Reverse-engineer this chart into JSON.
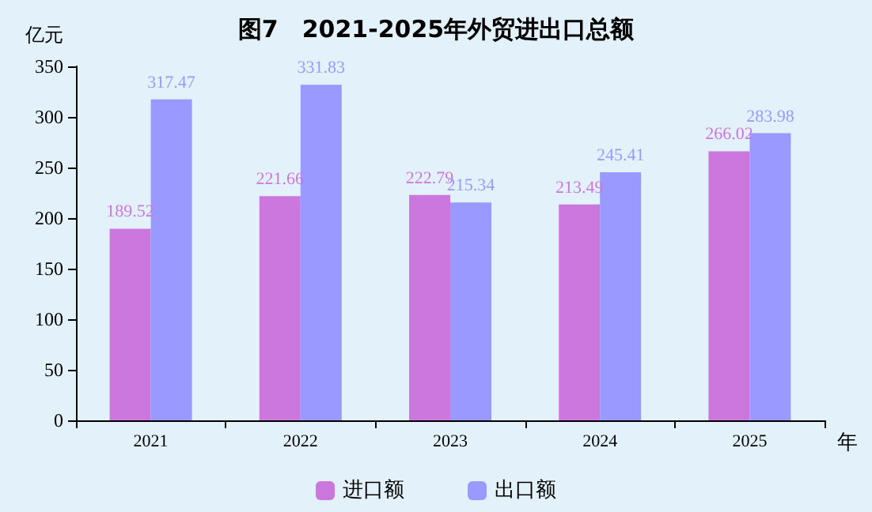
{
  "chart_data": {
    "type": "bar",
    "title": "图7　2021-2025年外贸进出口总额",
    "ylabel": "亿元",
    "xlabel": "年",
    "categories": [
      "2021",
      "2022",
      "2023",
      "2024",
      "2025"
    ],
    "series": [
      {
        "name": "进口额",
        "color": "#cc77dd",
        "values": [
          189.52,
          221.66,
          222.79,
          213.49,
          266.02
        ]
      },
      {
        "name": "出口额",
        "color": "#9999ff",
        "values": [
          317.47,
          331.83,
          215.34,
          245.41,
          283.98
        ]
      }
    ],
    "ylim": [
      0,
      350
    ],
    "yticks": [
      0,
      50,
      100,
      150,
      200,
      250,
      300,
      350
    ],
    "data_labels": true,
    "grid": false,
    "legend": "bottom"
  }
}
